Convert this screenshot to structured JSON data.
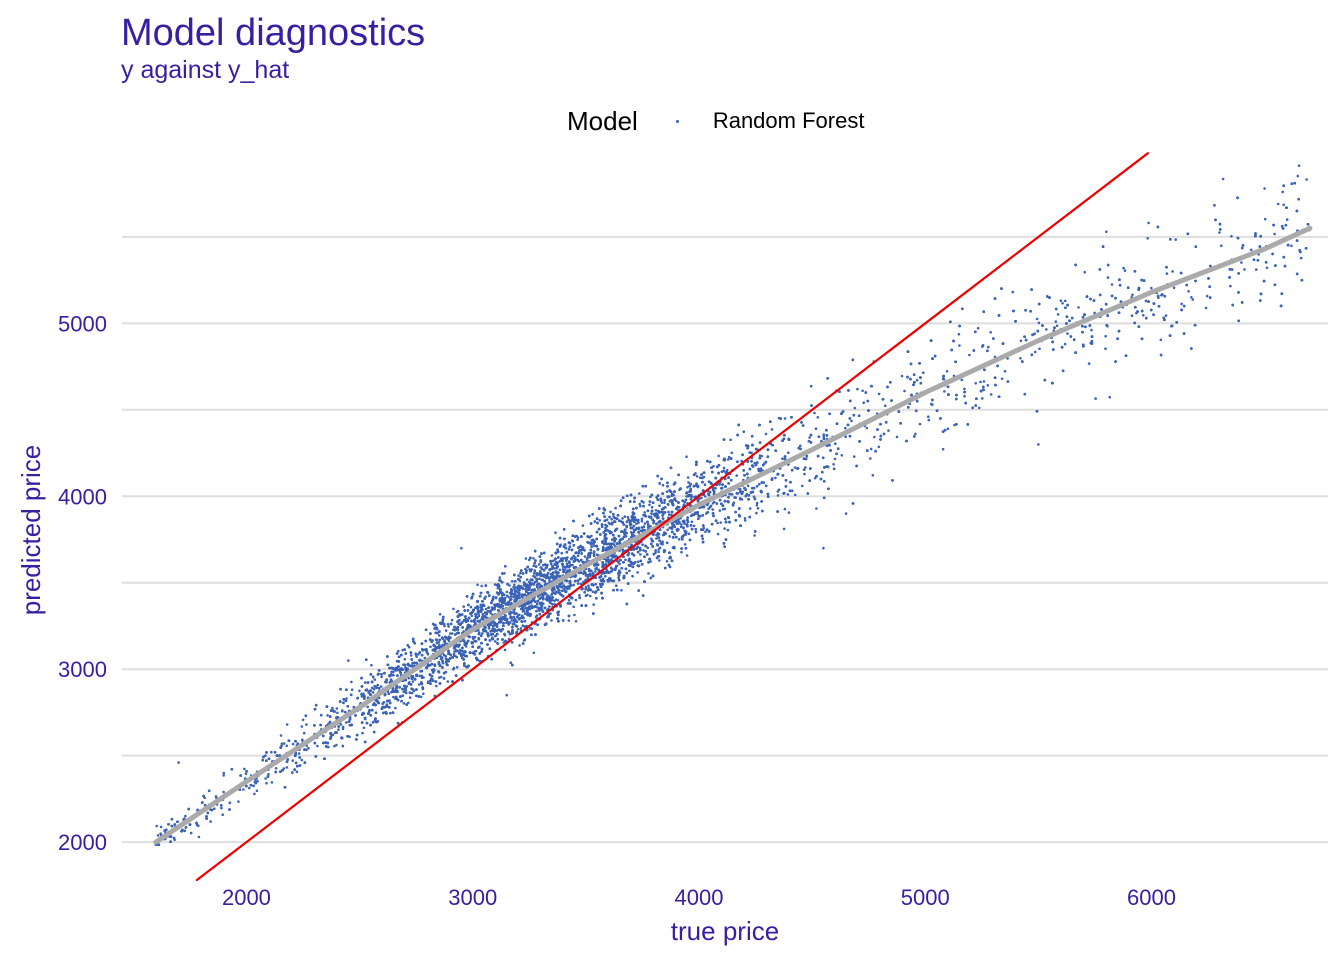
{
  "title": "Model diagnostics",
  "subtitle": "y against y_hat",
  "legend": {
    "title": "Model",
    "label": "Random Forest",
    "color": "#3a62b6"
  },
  "colors": {
    "text": "#371ea3",
    "grid": "#dedede",
    "points": "#3a62b6",
    "identity_line": "#ee0000",
    "smooth_line": "#aaaaaa"
  },
  "chart_data": {
    "type": "scatter",
    "title": "Model diagnostics",
    "subtitle": "y against y_hat",
    "xlabel": "true price",
    "ylabel": "predicted price",
    "xlim": [
      1450,
      6780
    ],
    "ylim": [
      1810,
      5800
    ],
    "x_ticks": [
      2000,
      3000,
      4000,
      5000,
      6000
    ],
    "y_ticks": [
      2000,
      3000,
      4000,
      5000
    ],
    "grid": "horizontal major and minor",
    "legend_position": "top",
    "series": [
      {
        "name": "Random Forest",
        "kind": "points",
        "approx_count": 9000,
        "trend": [
          [
            1600,
            2000
          ],
          [
            2000,
            2350
          ],
          [
            2500,
            2780
          ],
          [
            3000,
            3230
          ],
          [
            3500,
            3600
          ],
          [
            4000,
            3950
          ],
          [
            4500,
            4270
          ],
          [
            5000,
            4600
          ],
          [
            5500,
            4900
          ],
          [
            6000,
            5180
          ],
          [
            6500,
            5430
          ],
          [
            6700,
            5550
          ]
        ],
        "spread": [
          [
            1600,
            60
          ],
          [
            2500,
            150
          ],
          [
            3500,
            200
          ],
          [
            4500,
            250
          ],
          [
            5500,
            300
          ],
          [
            6700,
            320
          ]
        ],
        "outliers": [
          [
            1700,
            2460
          ],
          [
            1790,
            2030
          ],
          [
            1900,
            2400
          ],
          [
            2180,
            2680
          ],
          [
            2450,
            3050
          ],
          [
            2950,
            3700
          ],
          [
            3150,
            2850
          ],
          [
            3300,
            3620
          ],
          [
            4380,
            4450
          ],
          [
            4550,
            3700
          ],
          [
            4650,
            3900
          ],
          [
            4700,
            4620
          ],
          [
            5100,
            4390
          ],
          [
            5500,
            4300
          ],
          [
            5800,
            5530
          ],
          [
            6500,
            5780
          ],
          [
            6580,
            5760
          ],
          [
            6560,
            5690
          ]
        ]
      },
      {
        "name": "smooth",
        "kind": "line",
        "x": [
          1600,
          2000,
          2500,
          3000,
          3500,
          4000,
          4500,
          5000,
          5500,
          6000,
          6500,
          6700
        ],
        "y": [
          2000,
          2350,
          2780,
          3230,
          3600,
          3950,
          4270,
          4600,
          4900,
          5180,
          5430,
          5550
        ]
      },
      {
        "name": "identity",
        "kind": "line",
        "x": [
          1781,
          5984
        ],
        "y": [
          1781,
          5984
        ]
      }
    ]
  }
}
